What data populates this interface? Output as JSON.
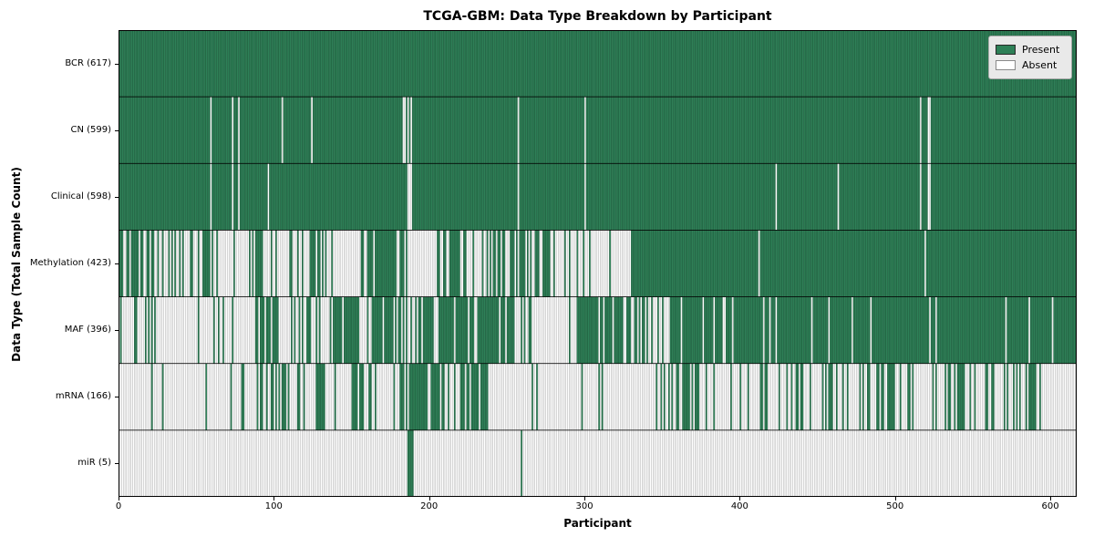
{
  "title": "TCGA-GBM: Data Type Breakdown by Participant",
  "axes": {
    "xlabel": "Participant",
    "ylabel": "Data Type (Total Sample Count)"
  },
  "legend": {
    "entries": [
      {
        "label": "Present",
        "color": "#2e8057"
      },
      {
        "label": "Absent",
        "color": "#ffffff"
      }
    ],
    "position": "upper right"
  },
  "colors": {
    "present": "#2e8057",
    "absent": "#ffffff",
    "present_edge": "rgba(10,40,26,0.55)",
    "absent_edge": "rgba(90,90,90,0.55)",
    "row_divider": "#000000"
  },
  "chart_data": {
    "type": "heatmap",
    "title": "TCGA-GBM: Data Type Breakdown by Participant",
    "xlabel": "Participant",
    "ylabel": "Data Type (Total Sample Count)",
    "x_range": [
      0,
      617
    ],
    "n_participants": 617,
    "x_ticks": [
      0,
      100,
      200,
      300,
      400,
      500,
      600
    ],
    "grid": false,
    "legend_position": "upper right",
    "cell_states": [
      "Present",
      "Absent"
    ],
    "rows": [
      {
        "label": "BCR (617)",
        "data_type": "BCR",
        "present_count": 617,
        "segments": [
          [
            0,
            617,
            1
          ]
        ]
      },
      {
        "label": "CN (599)",
        "data_type": "CN",
        "present_count": 599,
        "segments": [
          [
            0,
            59,
            1
          ],
          [
            59,
            60,
            0
          ],
          [
            60,
            73,
            1
          ],
          [
            73,
            74,
            0
          ],
          [
            74,
            77,
            1
          ],
          [
            77,
            78,
            0
          ],
          [
            78,
            105,
            1
          ],
          [
            105,
            106,
            0
          ],
          [
            106,
            124,
            1
          ],
          [
            124,
            125,
            0
          ],
          [
            125,
            183,
            1
          ],
          [
            183,
            189,
            0.35
          ],
          [
            189,
            257,
            1
          ],
          [
            257,
            258,
            0
          ],
          [
            258,
            300,
            1
          ],
          [
            300,
            301,
            0
          ],
          [
            301,
            516,
            1
          ],
          [
            516,
            517,
            0
          ],
          [
            517,
            521,
            1
          ],
          [
            521,
            523,
            0
          ],
          [
            523,
            617,
            1
          ]
        ]
      },
      {
        "label": "Clinical (598)",
        "data_type": "Clinical",
        "present_count": 598,
        "segments": [
          [
            0,
            59,
            1
          ],
          [
            59,
            60,
            0
          ],
          [
            60,
            73,
            1
          ],
          [
            73,
            74,
            0
          ],
          [
            74,
            77,
            1
          ],
          [
            77,
            78,
            0
          ],
          [
            78,
            96,
            1
          ],
          [
            96,
            97,
            0
          ],
          [
            97,
            184,
            1
          ],
          [
            184,
            189,
            0.3
          ],
          [
            189,
            257,
            1
          ],
          [
            257,
            258,
            0
          ],
          [
            258,
            300,
            1
          ],
          [
            300,
            301,
            0
          ],
          [
            301,
            423,
            1
          ],
          [
            423,
            424,
            0
          ],
          [
            424,
            463,
            1
          ],
          [
            463,
            464,
            0
          ],
          [
            464,
            516,
            1
          ],
          [
            516,
            517,
            0
          ],
          [
            517,
            521,
            1
          ],
          [
            521,
            523,
            0
          ],
          [
            523,
            617,
            1
          ]
        ]
      },
      {
        "label": "Methylation (423)",
        "data_type": "Methylation",
        "present_count": 423,
        "segments": [
          [
            0,
            25,
            0.78
          ],
          [
            25,
            59,
            0.5
          ],
          [
            59,
            88,
            0.15
          ],
          [
            88,
            93,
            0.9
          ],
          [
            93,
            110,
            0.25
          ],
          [
            110,
            137,
            0.5
          ],
          [
            137,
            155,
            0.18
          ],
          [
            155,
            188,
            0.75
          ],
          [
            188,
            203,
            0.05
          ],
          [
            203,
            220,
            0.7
          ],
          [
            220,
            257,
            0.35
          ],
          [
            257,
            282,
            0.75
          ],
          [
            282,
            311,
            0.2
          ],
          [
            311,
            331,
            0.15
          ],
          [
            331,
            412,
            1
          ],
          [
            412,
            413,
            0
          ],
          [
            413,
            519,
            1
          ],
          [
            519,
            520,
            0
          ],
          [
            520,
            617,
            1
          ]
        ]
      },
      {
        "label": "MAF (396)",
        "data_type": "MAF",
        "present_count": 396,
        "segments": [
          [
            0,
            27,
            0.2
          ],
          [
            27,
            88,
            0.05
          ],
          [
            88,
            104,
            0.7
          ],
          [
            104,
            113,
            0.1
          ],
          [
            113,
            137,
            0.5
          ],
          [
            137,
            155,
            0.75
          ],
          [
            155,
            163,
            0.1
          ],
          [
            163,
            176,
            0.9
          ],
          [
            176,
            188,
            0.3
          ],
          [
            188,
            255,
            0.85
          ],
          [
            255,
            295,
            0.12
          ],
          [
            295,
            311,
            0.9
          ],
          [
            311,
            342,
            0.7
          ],
          [
            342,
            355,
            0.25
          ],
          [
            355,
            437,
            0.8
          ],
          [
            437,
            617,
            0.93
          ]
        ]
      },
      {
        "label": "mRNA (166)",
        "data_type": "mRNA",
        "present_count": 166,
        "segments": [
          [
            0,
            22,
            0.04
          ],
          [
            22,
            31,
            0.3
          ],
          [
            31,
            86,
            0.04
          ],
          [
            86,
            110,
            0.45
          ],
          [
            110,
            127,
            0.15
          ],
          [
            127,
            133,
            0.8
          ],
          [
            133,
            153,
            0.15
          ],
          [
            153,
            163,
            0.5
          ],
          [
            163,
            177,
            0.1
          ],
          [
            177,
            187,
            0.5
          ],
          [
            187,
            207,
            0.75
          ],
          [
            207,
            220,
            0.25
          ],
          [
            220,
            238,
            0.8
          ],
          [
            238,
            282,
            0.1
          ],
          [
            282,
            311,
            0.05
          ],
          [
            311,
            345,
            0.1
          ],
          [
            345,
            375,
            0.5
          ],
          [
            375,
            400,
            0.2
          ],
          [
            400,
            440,
            0.3
          ],
          [
            440,
            480,
            0.3
          ],
          [
            480,
            510,
            0.45
          ],
          [
            510,
            545,
            0.33
          ],
          [
            545,
            580,
            0.45
          ],
          [
            580,
            594,
            0.6
          ],
          [
            594,
            617,
            0
          ]
        ]
      },
      {
        "label": "miR (5)",
        "data_type": "miR",
        "present_count": 5,
        "segments": [
          [
            0,
            186,
            0
          ],
          [
            186,
            190,
            0.85
          ],
          [
            190,
            259,
            0
          ],
          [
            259,
            260,
            1
          ],
          [
            260,
            617,
            0
          ]
        ]
      }
    ]
  }
}
